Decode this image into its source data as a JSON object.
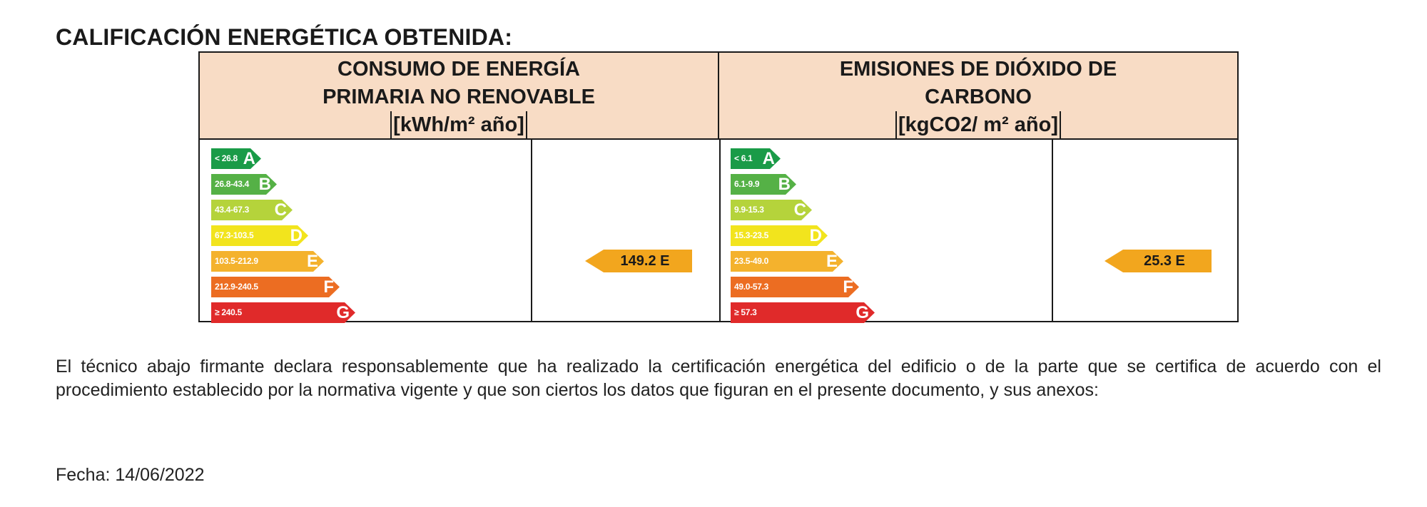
{
  "title": "CALIFICACIÓN ENERGÉTICA OBTENIDA:",
  "columns": [
    {
      "header_line1": "CONSUMO DE ENERGÍA",
      "header_line2": "PRIMARIA NO RENOVABLE",
      "unit": "[kWh/m² año]",
      "bands": [
        {
          "range": "< 26.8",
          "letter": "A",
          "color": "#1a9b48"
        },
        {
          "range": "26.8-43.4",
          "letter": "B",
          "color": "#55b146"
        },
        {
          "range": "43.4-67.3",
          "letter": "C",
          "color": "#b5d33b"
        },
        {
          "range": "67.3-103.5",
          "letter": "D",
          "color": "#f2e41d"
        },
        {
          "range": "103.5-212.9",
          "letter": "E",
          "color": "#f4b22d"
        },
        {
          "range": "212.9-240.5",
          "letter": "F",
          "color": "#ec6d22"
        },
        {
          "range": "≥ 240.5",
          "letter": "G",
          "color": "#e02a2a"
        }
      ],
      "result_label": "149.2 E",
      "result_band_index": 4
    },
    {
      "header_line1": "EMISIONES DE DIÓXIDO DE",
      "header_line2": "CARBONO",
      "unit": "[kgCO2/ m² año]",
      "bands": [
        {
          "range": "< 6.1",
          "letter": "A",
          "color": "#1a9b48"
        },
        {
          "range": "6.1-9.9",
          "letter": "B",
          "color": "#55b146"
        },
        {
          "range": "9.9-15.3",
          "letter": "C",
          "color": "#b5d33b"
        },
        {
          "range": "15.3-23.5",
          "letter": "D",
          "color": "#f2e41d"
        },
        {
          "range": "23.5-49.0",
          "letter": "E",
          "color": "#f4b22d"
        },
        {
          "range": "49.0-57.3",
          "letter": "F",
          "color": "#ec6d22"
        },
        {
          "range": "≥ 57.3",
          "letter": "G",
          "color": "#e02a2a"
        }
      ],
      "result_label": "25.3 E",
      "result_band_index": 4
    }
  ],
  "declaration": "El técnico abajo firmante declara responsablemente que ha realizado la certificación energética del edificio o de la parte que se certifica de acuerdo con el procedimiento establecido por la normativa vigente y que son ciertos los datos que figuran en el presente documento, y sus anexos:",
  "date_label": "Fecha:",
  "date_value": "14/06/2022"
}
